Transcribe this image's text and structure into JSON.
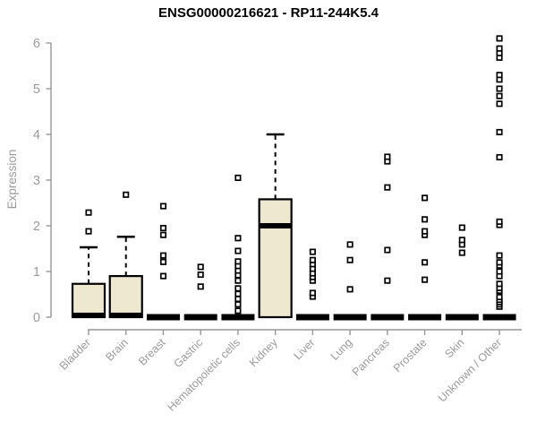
{
  "window": {
    "background": "#ffffff"
  },
  "chart_data": {
    "type": "boxplot",
    "title": "ENSG00000216621 - RP11-244K5.4",
    "ylabel": "Expression",
    "xlabel": "",
    "ylim": [
      0,
      6.2
    ],
    "yticks": [
      0,
      1,
      2,
      3,
      4,
      5,
      6
    ],
    "grid": false,
    "legend": null,
    "colors": {
      "box_fill": "#EEE8D0",
      "box_stroke": "#000000",
      "median": "#000000",
      "whisker": "#000000",
      "outlier_stroke": "#000000",
      "outlier_fill": "#ffffff",
      "axis": "#969696",
      "tick_label": "#9a9a9a",
      "title": "#000000"
    },
    "categories": [
      "Bladder",
      "Brain",
      "Breast",
      "Gastric",
      "Hematopoietic cells",
      "Kidney",
      "Liver",
      "Lung",
      "Pancreas",
      "Prostate",
      "Skin",
      "Unknown / Other"
    ],
    "series": [
      {
        "category": "Bladder",
        "q1": 0,
        "median": 0.04,
        "q3": 0.73,
        "whisker_low": 0,
        "whisker_high": 1.53,
        "outliers": [
          1.88,
          2.29
        ]
      },
      {
        "category": "Brain",
        "q1": 0,
        "median": 0.04,
        "q3": 0.9,
        "whisker_low": 0,
        "whisker_high": 1.76,
        "outliers": [
          2.68
        ]
      },
      {
        "category": "Breast",
        "q1": 0,
        "median": 0,
        "q3": 0,
        "whisker_low": 0,
        "whisker_high": 0,
        "outliers": [
          0.9,
          1.21,
          1.35,
          1.8,
          1.95,
          2.43
        ]
      },
      {
        "category": "Gastric",
        "q1": 0,
        "median": 0,
        "q3": 0,
        "whisker_low": 0,
        "whisker_high": 0,
        "outliers": [
          0.67,
          0.93,
          1.1
        ]
      },
      {
        "category": "Hematopoietic cells",
        "q1": 0,
        "median": 0,
        "q3": 0,
        "whisker_low": 0,
        "whisker_high": 0,
        "outliers": [
          0.14,
          0.28,
          0.4,
          0.51,
          0.63,
          0.8,
          0.92,
          1.02,
          1.12,
          1.22,
          1.45,
          1.73,
          3.05
        ]
      },
      {
        "category": "Kidney",
        "q1": 0,
        "median": 2.0,
        "q3": 2.58,
        "whisker_low": 0,
        "whisker_high": 4.0,
        "outliers": []
      },
      {
        "category": "Liver",
        "q1": 0,
        "median": 0,
        "q3": 0,
        "whisker_low": 0,
        "whisker_high": 0,
        "outliers": [
          0.45,
          0.53,
          0.8,
          0.88,
          0.96,
          1.06,
          1.16,
          1.25,
          1.43
        ]
      },
      {
        "category": "Lung",
        "q1": 0,
        "median": 0,
        "q3": 0,
        "whisker_low": 0,
        "whisker_high": 0,
        "outliers": [
          0.61,
          1.25,
          1.59
        ]
      },
      {
        "category": "Pancreas",
        "q1": 0,
        "median": 0,
        "q3": 0,
        "whisker_low": 0,
        "whisker_high": 0,
        "outliers": [
          0.8,
          1.47,
          2.84,
          3.41,
          3.51
        ]
      },
      {
        "category": "Prostate",
        "q1": 0,
        "median": 0,
        "q3": 0,
        "whisker_low": 0,
        "whisker_high": 0,
        "outliers": [
          0.82,
          1.2,
          1.8,
          1.88,
          2.14,
          2.61
        ]
      },
      {
        "category": "Skin",
        "q1": 0,
        "median": 0,
        "q3": 0,
        "whisker_low": 0,
        "whisker_high": 0,
        "outliers": [
          1.41,
          1.59,
          1.69,
          1.96
        ]
      },
      {
        "category": "Unknown / Other",
        "q1": 0,
        "median": 0,
        "q3": 0,
        "whisker_low": 0,
        "whisker_high": 0,
        "outliers": [
          0.23,
          0.28,
          0.33,
          0.38,
          0.44,
          0.58,
          0.64,
          0.73,
          0.9,
          1.0,
          1.13,
          1.2,
          1.35,
          2.02,
          2.09,
          3.5,
          4.05,
          4.67,
          4.84,
          5.0,
          5.2,
          5.3,
          5.68,
          5.78,
          5.88,
          6.1
        ]
      }
    ]
  }
}
